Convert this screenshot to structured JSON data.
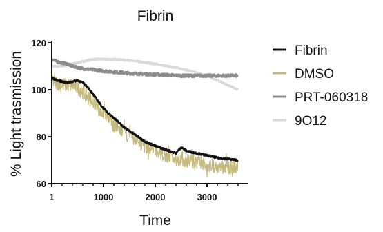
{
  "chart_data": {
    "type": "line",
    "title": "Fibrin",
    "xlabel": "Time",
    "ylabel": "% Light trasmission",
    "xlim": [
      1,
      3800
    ],
    "ylim": [
      60,
      120
    ],
    "x_ticks": [
      1,
      1000,
      2000,
      3000
    ],
    "x_tick_labels": [
      "1",
      "1000",
      "2000",
      "3000"
    ],
    "y_ticks": [
      60,
      80,
      100,
      120
    ],
    "y_tick_labels": [
      "60",
      "80",
      "100",
      "120"
    ],
    "grid": false,
    "legend_position": "right",
    "series": [
      {
        "name": "Fibrin",
        "color": "#111111",
        "noise": 0.4,
        "x": [
          1,
          100,
          200,
          300,
          400,
          500,
          600,
          700,
          800,
          900,
          1000,
          1200,
          1400,
          1600,
          1800,
          2000,
          2200,
          2400,
          2500,
          2600,
          2800,
          3000,
          3200,
          3400,
          3600
        ],
        "values": [
          105,
          104,
          103.5,
          103,
          103.5,
          104,
          103,
          101,
          98,
          95,
          92,
          88,
          84,
          81,
          78,
          76,
          74.5,
          73,
          75.5,
          74,
          73,
          72,
          71,
          70.5,
          70
        ]
      },
      {
        "name": "DMSO",
        "color": "#c5b97c",
        "noise": 3.2,
        "x": [
          1,
          100,
          200,
          300,
          400,
          500,
          600,
          700,
          800,
          900,
          1000,
          1200,
          1400,
          1600,
          1800,
          2000,
          2200,
          2400,
          2600,
          2800,
          3000,
          3200,
          3400,
          3600
        ],
        "values": [
          104,
          103,
          102,
          102,
          102,
          101,
          99,
          97,
          95,
          92,
          90,
          85,
          82,
          79,
          76,
          74,
          72,
          71,
          70,
          69,
          68,
          67.5,
          67,
          67
        ]
      },
      {
        "name": "PRT-060318",
        "color": "#8c8c8c",
        "noise": 0.6,
        "x": [
          1,
          100,
          200,
          300,
          400,
          600,
          800,
          1000,
          1500,
          2000,
          2500,
          3000,
          3600
        ],
        "values": [
          113,
          112,
          111.5,
          111,
          110,
          109,
          108.5,
          108,
          107,
          106.5,
          106,
          106,
          106
        ]
      },
      {
        "name": "9O12",
        "color": "#d9d9d9",
        "noise": 0.3,
        "x": [
          1,
          200,
          400,
          600,
          800,
          1000,
          1200,
          1500,
          2000,
          2500,
          3000,
          3300,
          3600
        ],
        "values": [
          110,
          110,
          111,
          112,
          113,
          113,
          113,
          112.5,
          111,
          109,
          106,
          103,
          100
        ]
      }
    ]
  }
}
